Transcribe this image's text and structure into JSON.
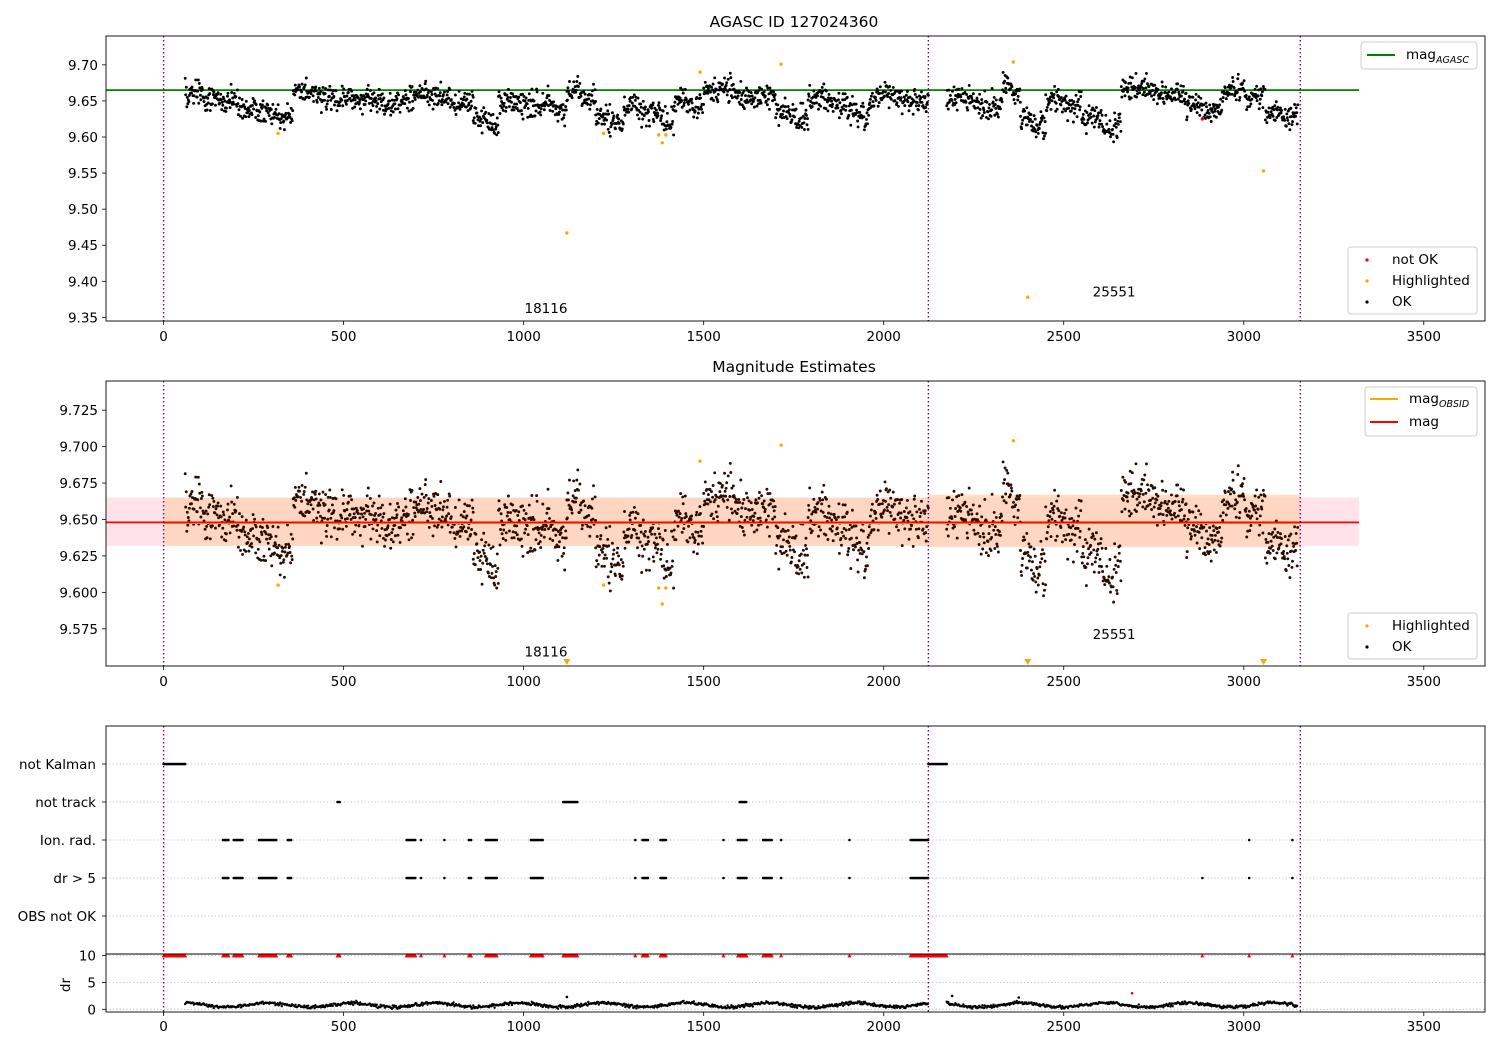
{
  "figure": {
    "title_top": "AGASC ID 127024360",
    "title_mid": "Magnitude Estimates"
  },
  "colors": {
    "ok": "#000000",
    "highlighted": "#ffa500",
    "not_ok": "#ff0000",
    "mag_agasc": "#008000",
    "mag_obsid": "#ffa500",
    "mag": "#ff0000",
    "obsid_divider": "#800080",
    "band_mag": "#ffc0cb",
    "band_obsid": "#ffd2b4"
  },
  "chart_data": [
    {
      "type": "scatter",
      "title": "AGASC ID 127024360",
      "xlim": [
        -160,
        3670
      ],
      "ylim": [
        9.345,
        9.74
      ],
      "xticks": [
        "0",
        "500",
        "1000",
        "1500",
        "2000",
        "2500",
        "3000",
        "3500"
      ],
      "yticks": [
        "9.35",
        "9.40",
        "9.45",
        "9.50",
        "9.55",
        "9.60",
        "9.65",
        "9.70"
      ],
      "lines": [
        {
          "name": "mag_AGASC",
          "y": 9.665,
          "x_range": [
            -160,
            3320
          ]
        }
      ],
      "obsid_dividers_x": [
        0,
        2124,
        3157
      ],
      "obsid_labels": [
        {
          "text": "18116",
          "x": 1062,
          "y": 9.363
        },
        {
          "text": "25551",
          "x": 2640,
          "y": 9.386
        }
      ],
      "ok_series": {
        "x_range": [
          60,
          3150
        ],
        "gap": [
          2124,
          2175
        ],
        "segments": [
          {
            "x": [
              60,
              160
            ],
            "mean": 9.658
          },
          {
            "x": [
              160,
              260
            ],
            "mean": 9.645
          },
          {
            "x": [
              260,
              360
            ],
            "mean": 9.632
          },
          {
            "x": [
              360,
              480
            ],
            "mean": 9.66
          },
          {
            "x": [
              480,
              680
            ],
            "mean": 9.65
          },
          {
            "x": [
              680,
              860
            ],
            "mean": 9.655
          },
          {
            "x": [
              860,
              930
            ],
            "mean": 9.622
          },
          {
            "x": [
              930,
              1040
            ],
            "mean": 9.65
          },
          {
            "x": [
              1040,
              1120
            ],
            "mean": 9.642
          },
          {
            "x": [
              1120,
              1200
            ],
            "mean": 9.66
          },
          {
            "x": [
              1200,
              1280
            ],
            "mean": 9.625
          },
          {
            "x": [
              1280,
              1360
            ],
            "mean": 9.64
          },
          {
            "x": [
              1360,
              1420
            ],
            "mean": 9.625
          },
          {
            "x": [
              1420,
              1500
            ],
            "mean": 9.65
          },
          {
            "x": [
              1500,
              1700
            ],
            "mean": 9.66
          },
          {
            "x": [
              1700,
              1790
            ],
            "mean": 9.632
          },
          {
            "x": [
              1790,
              1900
            ],
            "mean": 9.65
          },
          {
            "x": [
              1900,
              1960
            ],
            "mean": 9.632
          },
          {
            "x": [
              1960,
              2124
            ],
            "mean": 9.655
          },
          {
            "x": [
              2175,
              2330
            ],
            "mean": 9.648
          },
          {
            "x": [
              2330,
              2380
            ],
            "mean": 9.668
          },
          {
            "x": [
              2380,
              2450
            ],
            "mean": 9.62
          },
          {
            "x": [
              2450,
              2550
            ],
            "mean": 9.648
          },
          {
            "x": [
              2550,
              2660
            ],
            "mean": 9.62
          },
          {
            "x": [
              2660,
              2840
            ],
            "mean": 9.662
          },
          {
            "x": [
              2840,
              2940
            ],
            "mean": 9.64
          },
          {
            "x": [
              2940,
              3060
            ],
            "mean": 9.662
          },
          {
            "x": [
              3060,
              3150
            ],
            "mean": 9.63
          }
        ]
      },
      "highlighted_points": [
        {
          "x": 318,
          "y": 9.605
        },
        {
          "x": 1120,
          "y": 9.467
        },
        {
          "x": 1222,
          "y": 9.605
        },
        {
          "x": 1375,
          "y": 9.603
        },
        {
          "x": 1385,
          "y": 9.592
        },
        {
          "x": 1395,
          "y": 9.603
        },
        {
          "x": 1490,
          "y": 9.69
        },
        {
          "x": 1715,
          "y": 9.701
        },
        {
          "x": 2360,
          "y": 9.704
        },
        {
          "x": 2400,
          "y": 9.378
        },
        {
          "x": 3055,
          "y": 9.553
        }
      ],
      "not_ok_points": [
        {
          "x": 2885,
          "y": 9.625
        }
      ],
      "legends": [
        {
          "position": "upper-right",
          "entries": [
            {
              "label": "mag",
              "sub": "AGASC"
            }
          ]
        },
        {
          "position": "lower-right",
          "entries": [
            {
              "label": "not OK"
            },
            {
              "label": "Highlighted"
            },
            {
              "label": "OK"
            }
          ]
        }
      ]
    },
    {
      "type": "scatter",
      "title": "Magnitude Estimates",
      "xlim": [
        -160,
        3670
      ],
      "ylim": [
        9.5495,
        9.745
      ],
      "xticks": [
        "0",
        "500",
        "1000",
        "1500",
        "2000",
        "2500",
        "3000",
        "3500"
      ],
      "yticks": [
        "9.575",
        "9.600",
        "9.625",
        "9.650",
        "9.675",
        "9.700",
        "9.725"
      ],
      "mag_line": {
        "name": "mag",
        "y": 9.648,
        "x_range": [
          -160,
          3320
        ]
      },
      "mag_band": {
        "low": 9.632,
        "high": 9.665
      },
      "obsid_lines": [
        {
          "x_range": [
            0,
            2124
          ],
          "y": 9.6475,
          "band": [
            9.632,
            9.665
          ]
        },
        {
          "x_range": [
            2124,
            3157
          ],
          "y": 9.6475,
          "band": [
            9.631,
            9.667
          ]
        }
      ],
      "obsid_dividers_x": [
        0,
        2124,
        3157
      ],
      "obsid_labels": [
        {
          "text": "18116",
          "x": 1062,
          "y": 9.5595
        },
        {
          "text": "25551",
          "x": 2640,
          "y": 9.5715
        }
      ],
      "out_of_range_markers_x": [
        1120,
        2400,
        3055
      ],
      "legends": [
        {
          "position": "upper-right",
          "entries": [
            {
              "label": "mag",
              "sub": "OBSID"
            },
            {
              "label": "mag"
            }
          ]
        },
        {
          "position": "lower-right",
          "entries": [
            {
              "label": "Highlighted"
            },
            {
              "label": "OK"
            }
          ]
        }
      ]
    },
    {
      "type": "scatter",
      "title": "",
      "xlim": [
        -160,
        3670
      ],
      "xticks": [
        "0",
        "500",
        "1000",
        "1500",
        "2000",
        "2500",
        "3000",
        "3500"
      ],
      "flag_rows": [
        "not Kalman",
        "not track",
        "Ion. rad.",
        "dr > 5",
        "OBS not OK"
      ],
      "flags": {
        "not Kalman": [
          [
            0,
            60
          ],
          [
            2124,
            2175
          ]
        ],
        "not track": [
          [
            483,
            490
          ],
          [
            1110,
            1150
          ],
          [
            1600,
            1620
          ]
        ],
        "Ion. rad.": [
          [
            165,
            180
          ],
          [
            195,
            220
          ],
          [
            265,
            315
          ],
          [
            345,
            355
          ],
          [
            675,
            700
          ],
          [
            715,
            715
          ],
          [
            780,
            780
          ],
          [
            848,
            855
          ],
          [
            895,
            925
          ],
          [
            1020,
            1055
          ],
          [
            1310,
            1310
          ],
          [
            1330,
            1345
          ],
          [
            1380,
            1395
          ],
          [
            1555,
            1555
          ],
          [
            1595,
            1620
          ],
          [
            1665,
            1690
          ],
          [
            1715,
            1715
          ],
          [
            1905,
            1905
          ],
          [
            2075,
            2124
          ],
          [
            3015,
            3015
          ],
          [
            3135,
            3135
          ]
        ],
        "dr > 5": [
          [
            165,
            180
          ],
          [
            195,
            220
          ],
          [
            265,
            315
          ],
          [
            345,
            355
          ],
          [
            675,
            700
          ],
          [
            715,
            715
          ],
          [
            780,
            780
          ],
          [
            848,
            855
          ],
          [
            895,
            925
          ],
          [
            1020,
            1055
          ],
          [
            1310,
            1310
          ],
          [
            1330,
            1345
          ],
          [
            1380,
            1395
          ],
          [
            1555,
            1555
          ],
          [
            1595,
            1620
          ],
          [
            1665,
            1690
          ],
          [
            1715,
            1715
          ],
          [
            1905,
            1905
          ],
          [
            2075,
            2124
          ],
          [
            2885,
            2885
          ],
          [
            3015,
            3015
          ],
          [
            3135,
            3135
          ]
        ],
        "OBS not OK": []
      },
      "dr": {
        "ylabel": "dr",
        "yticks": [
          "0",
          "5",
          "10"
        ],
        "ylim": [
          -0.5,
          10.3
        ],
        "clip_value": 10,
        "typical_range": [
          0.2,
          1.5
        ],
        "spike_points": [
          {
            "x": 1120,
            "y": 2.3
          },
          {
            "x": 2190,
            "y": 2.5
          },
          {
            "x": 2375,
            "y": 2.2
          },
          {
            "x": 2690,
            "y": 3.0
          }
        ]
      },
      "obsid_dividers_x": [
        0,
        2124,
        3157
      ]
    }
  ]
}
